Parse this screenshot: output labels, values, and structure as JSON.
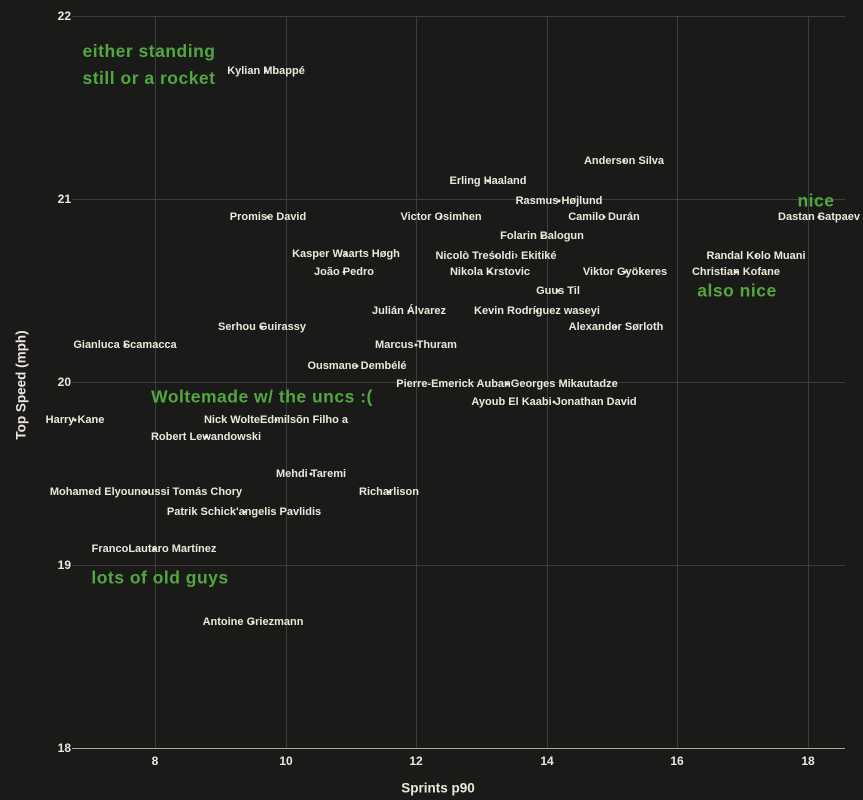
{
  "chart_data": {
    "type": "scatter",
    "title": "",
    "xlabel": "Sprints p90",
    "ylabel": "Top Speed (mph)",
    "xlim": [
      6.7,
      18.6
    ],
    "ylim": [
      18,
      22.1
    ],
    "x_ticks": [
      8,
      10,
      12,
      14,
      16,
      18
    ],
    "y_ticks": [
      18,
      19,
      20,
      21,
      22
    ],
    "grid": true,
    "legend": "none",
    "colors": {
      "background": "#1a1a18",
      "label_text": "#ece7d8",
      "grid": "#3d3d3b",
      "axis_line": "#aaa69b",
      "annotation_green": "#52a83e"
    },
    "points": [
      {
        "label": "Kylian Mbappé",
        "x": 9.7,
        "y": 21.7
      },
      {
        "label": "Anderson Silva",
        "x": 15.18,
        "y": 21.21
      },
      {
        "label": "Erling Haaland",
        "x": 13.1,
        "y": 21.1
      },
      {
        "label": "Rasmus Højlund",
        "x": 14.19,
        "y": 20.99
      },
      {
        "label": "Promise David",
        "x": 9.73,
        "y": 20.9
      },
      {
        "label": "Victor Osimhen",
        "x": 12.38,
        "y": 20.9
      },
      {
        "label": "Camilo Durán",
        "x": 14.88,
        "y": 20.9
      },
      {
        "label": "Dastan Satpaev",
        "x": 18.17,
        "y": 20.9
      },
      {
        "label": "Folarin Balogun",
        "x": 13.93,
        "y": 20.8
      },
      {
        "label": "Kasper Waarts Høgh",
        "x": 10.92,
        "y": 20.7
      },
      {
        "label": "Nicolò Treśoldi› Ekitiké",
        "x": 13.22,
        "y": 20.69
      },
      {
        "label": "Randal Kolo Muani",
        "x": 17.2,
        "y": 20.69
      },
      {
        "label": "João Pedro",
        "x": 10.89,
        "y": 20.6
      },
      {
        "label": "Nikola Krstovic",
        "x": 13.13,
        "y": 20.6
      },
      {
        "label": "Viktor Gyökeres",
        "x": 15.2,
        "y": 20.6
      },
      {
        "label": "Christian Kofane",
        "x": 16.9,
        "y": 20.6
      },
      {
        "label": "Guus Til",
        "x": 14.17,
        "y": 20.5
      },
      {
        "label": "Julián Álvarez",
        "x": 11.89,
        "y": 20.39
      },
      {
        "label": "Kevin Rodríguez waseyi",
        "x": 13.85,
        "y": 20.39
      },
      {
        "label": "Serhou Guirassy",
        "x": 9.64,
        "y": 20.3
      },
      {
        "label": "Alexander Sørloth",
        "x": 15.06,
        "y": 20.3
      },
      {
        "label": "Gianluca Scamacca",
        "x": 7.54,
        "y": 20.2
      },
      {
        "label": "Marcus Thuram",
        "x": 12.0,
        "y": 20.2
      },
      {
        "label": "Ousmane Dembélé",
        "x": 11.09,
        "y": 20.09
      },
      {
        "label": "Pierre-Emerick AubanGeorges Mikautadze",
        "x": 13.39,
        "y": 19.99
      },
      {
        "label": "Ayoub El Kaabi Jonathan David",
        "x": 14.11,
        "y": 19.89
      },
      {
        "label": "Harry Kane",
        "x": 6.77,
        "y": 19.79
      },
      {
        "label": "Nick WolteEdmilsõn Filho a",
        "x": 9.85,
        "y": 19.79
      },
      {
        "label": "Robert Lewandowski",
        "x": 8.78,
        "y": 19.7
      },
      {
        "label": "Mehdi Taremi",
        "x": 10.39,
        "y": 19.5
      },
      {
        "label": "Mohamed Elyounoussi Tomás Chory",
        "x": 7.86,
        "y": 19.4
      },
      {
        "label": "Richarlison",
        "x": 11.58,
        "y": 19.4
      },
      {
        "label": "Patrik Schick'angelis Pavlidis",
        "x": 9.36,
        "y": 19.29
      },
      {
        "label": "FrancoLautaro Martínez",
        "x": 7.98,
        "y": 19.09
      },
      {
        "label": "Antoine Griezmann",
        "x": 9.5,
        "y": 18.69
      }
    ],
    "annotations": [
      {
        "text": "either standing\nstill or a rocket",
        "x": 7.91,
        "y": 21.73
      },
      {
        "text": "nice",
        "x": 18.12,
        "y": 20.99
      },
      {
        "text": "also nice",
        "x": 16.91,
        "y": 20.5
      },
      {
        "text": "Woltemade w/ the uncs :(",
        "x": 9.64,
        "y": 19.92
      },
      {
        "text": "lots of old guys",
        "x": 8.08,
        "y": 18.93
      }
    ]
  }
}
